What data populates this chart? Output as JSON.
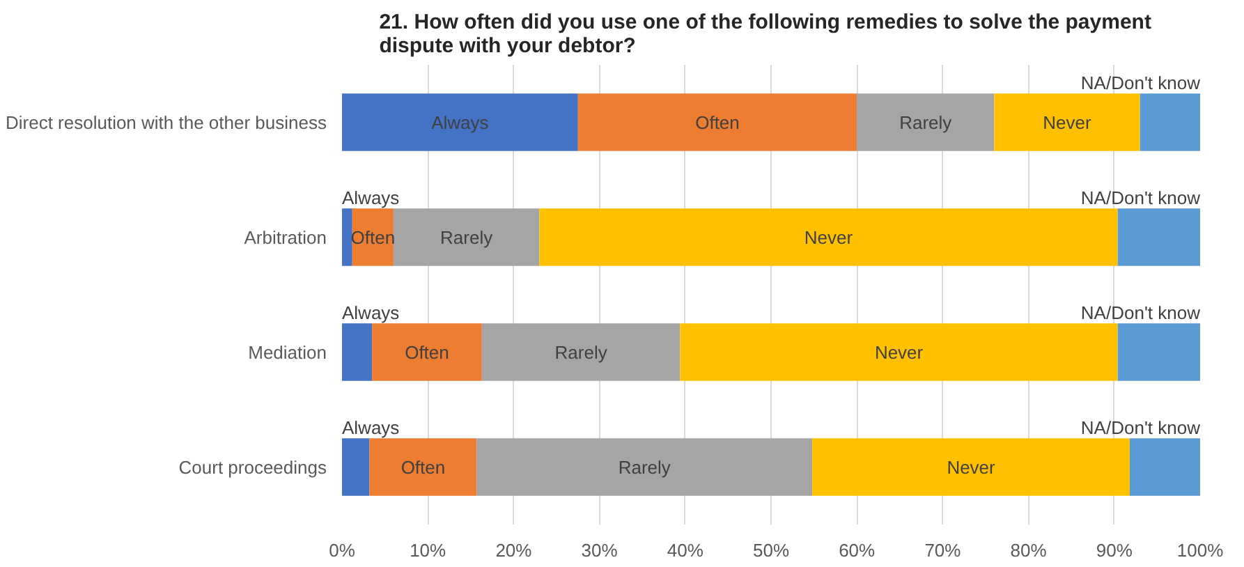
{
  "chart_data": {
    "type": "bar",
    "orientation": "horizontal",
    "stacked": true,
    "title": "21. How often did you use one of the following  remedies to solve  the payment\ndispute with your debtor?",
    "categories": [
      "Direct resolution with the other business",
      "Arbitration",
      "Mediation",
      "Court proceedings"
    ],
    "series": [
      {
        "name": "Always",
        "color": "#4472c4",
        "values": [
          27.5,
          1.2,
          3.5,
          3.2
        ]
      },
      {
        "name": "Often",
        "color": "#ed7d31",
        "values": [
          32.5,
          4.8,
          12.8,
          12.5
        ]
      },
      {
        "name": "Rarely",
        "color": "#a5a5a5",
        "values": [
          16,
          17,
          23.1,
          39.1
        ]
      },
      {
        "name": "Never",
        "color": "#ffc000",
        "values": [
          17,
          67.4,
          51,
          37
        ]
      },
      {
        "name": "NA/Don't know",
        "color": "#5b9bd5",
        "values": [
          7,
          9.6,
          9.6,
          8.2
        ]
      }
    ],
    "xlim": [
      0,
      100
    ],
    "xticks": [
      {
        "value": 0,
        "label": "0%"
      },
      {
        "value": 10,
        "label": "10%"
      },
      {
        "value": 20,
        "label": "20%"
      },
      {
        "value": 30,
        "label": "30%"
      },
      {
        "value": 40,
        "label": "40%"
      },
      {
        "value": 50,
        "label": "50%"
      },
      {
        "value": 60,
        "label": "60%"
      },
      {
        "value": 70,
        "label": "70%"
      },
      {
        "value": 80,
        "label": "80%"
      },
      {
        "value": 90,
        "label": "90%"
      },
      {
        "value": 100,
        "label": "100%"
      }
    ],
    "grid": "x"
  }
}
